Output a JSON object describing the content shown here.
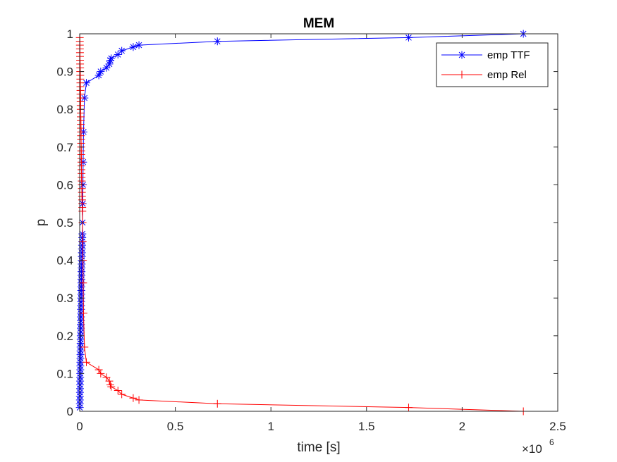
{
  "chart_data": {
    "type": "line",
    "title": "MEM",
    "xlabel": "time [s]",
    "ylabel": "p",
    "x_exponent_label": "×10",
    "x_exponent_power": "6",
    "xlim": [
      0,
      2500000
    ],
    "ylim": [
      0,
      1
    ],
    "x_ticks": [
      "0",
      "0.5",
      "1",
      "1.5",
      "2",
      "2.5"
    ],
    "x_tick_values": [
      0,
      500000,
      1000000,
      1500000,
      2000000,
      2500000
    ],
    "y_ticks": [
      "0",
      "0.1",
      "0.2",
      "0.3",
      "0.4",
      "0.5",
      "0.6",
      "0.7",
      "0.8",
      "0.9",
      "1"
    ],
    "y_tick_values": [
      0,
      0.1,
      0.2,
      0.3,
      0.4,
      0.5,
      0.6,
      0.7,
      0.8,
      0.9,
      1
    ],
    "grid": false,
    "legend_position": "top-right",
    "series": [
      {
        "name": "emp TTF",
        "color": "#0000ff",
        "marker": "asterisk",
        "x": [
          500,
          800,
          1000,
          1200,
          1500,
          1800,
          2000,
          2200,
          2500,
          2800,
          3000,
          3200,
          3500,
          3800,
          4000,
          4200,
          4500,
          4800,
          5000,
          5200,
          5500,
          5800,
          6000,
          6200,
          6500,
          6800,
          7000,
          7200,
          7500,
          7800,
          8000,
          8200,
          8500,
          8800,
          9000,
          9300,
          9600,
          10000,
          10400,
          10800,
          11200,
          11600,
          12000,
          12500,
          13000,
          13500,
          14000,
          15000,
          16000,
          17000,
          18000,
          20000,
          25000,
          35000,
          100000,
          110000,
          140000,
          155000,
          160000,
          165000,
          200000,
          220000,
          280000,
          310000,
          720000,
          1720000,
          2320000
        ],
        "y": [
          0.01,
          0.02,
          0.03,
          0.04,
          0.05,
          0.06,
          0.07,
          0.08,
          0.09,
          0.1,
          0.11,
          0.12,
          0.13,
          0.14,
          0.15,
          0.16,
          0.17,
          0.18,
          0.19,
          0.2,
          0.21,
          0.22,
          0.23,
          0.24,
          0.25,
          0.26,
          0.27,
          0.28,
          0.29,
          0.3,
          0.31,
          0.32,
          0.33,
          0.34,
          0.35,
          0.36,
          0.37,
          0.38,
          0.39,
          0.4,
          0.41,
          0.42,
          0.43,
          0.44,
          0.45,
          0.46,
          0.47,
          0.5,
          0.55,
          0.6,
          0.66,
          0.74,
          0.83,
          0.87,
          0.89,
          0.9,
          0.91,
          0.92,
          0.93,
          0.935,
          0.945,
          0.955,
          0.965,
          0.97,
          0.98,
          0.99,
          1.0
        ]
      },
      {
        "name": "emp Rel",
        "color": "#ff0000",
        "marker": "plus",
        "x": [
          500,
          800,
          1000,
          1200,
          1500,
          1800,
          2000,
          2200,
          2500,
          2800,
          3000,
          3200,
          3500,
          3800,
          4000,
          4200,
          4500,
          4800,
          5000,
          5200,
          5500,
          5800,
          6000,
          6200,
          6500,
          6800,
          7000,
          7200,
          7500,
          7800,
          8000,
          8200,
          8500,
          8800,
          9000,
          9300,
          9600,
          10000,
          10400,
          10800,
          11200,
          11600,
          12000,
          12500,
          13000,
          13500,
          14000,
          15000,
          16000,
          17000,
          18000,
          20000,
          25000,
          35000,
          100000,
          110000,
          140000,
          155000,
          160000,
          165000,
          200000,
          220000,
          280000,
          310000,
          720000,
          1720000,
          2320000
        ],
        "y": [
          0.99,
          0.98,
          0.97,
          0.96,
          0.95,
          0.94,
          0.93,
          0.92,
          0.91,
          0.9,
          0.89,
          0.88,
          0.87,
          0.86,
          0.85,
          0.84,
          0.83,
          0.82,
          0.81,
          0.8,
          0.79,
          0.78,
          0.77,
          0.76,
          0.75,
          0.74,
          0.73,
          0.72,
          0.71,
          0.7,
          0.69,
          0.68,
          0.67,
          0.66,
          0.65,
          0.64,
          0.63,
          0.62,
          0.61,
          0.6,
          0.59,
          0.58,
          0.57,
          0.56,
          0.55,
          0.54,
          0.53,
          0.5,
          0.45,
          0.4,
          0.34,
          0.26,
          0.17,
          0.13,
          0.11,
          0.1,
          0.09,
          0.08,
          0.07,
          0.065,
          0.055,
          0.045,
          0.035,
          0.03,
          0.02,
          0.01,
          0.0
        ]
      }
    ]
  }
}
